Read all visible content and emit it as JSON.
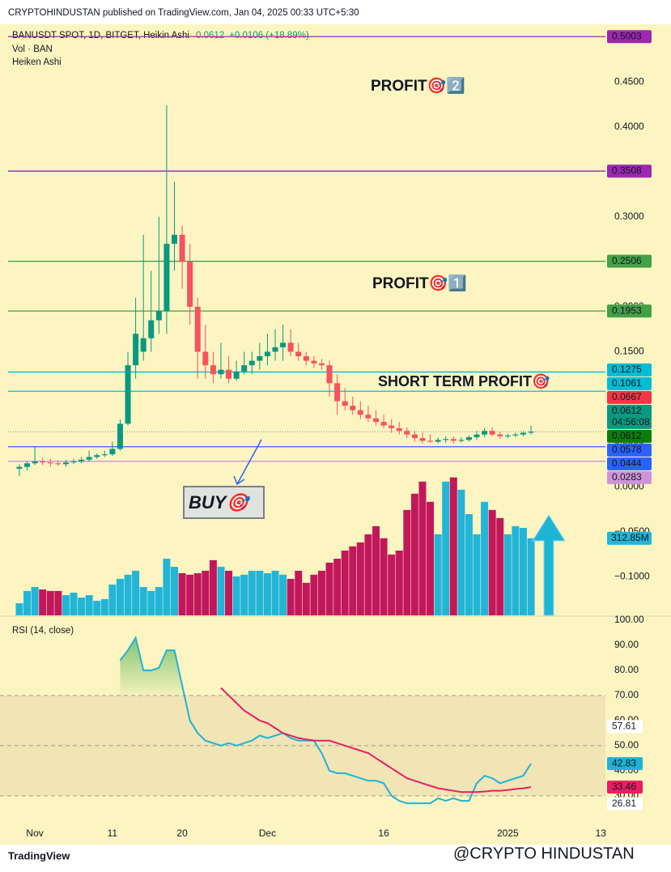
{
  "header": {
    "published": "CRYPTOHINDUSTAN published on TradingView.com, Jan 04, 2025 00:33 UTC+5:30",
    "symbol": "BANUSDT SPOT, 1D, BITGET, Heikin Ashi",
    "last": "0.0612",
    "change": "+0.0106 (+18.89%)",
    "volume_legend": "Vol · BAN",
    "indicator": "Heiken Ashi"
  },
  "annotations": {
    "profit2": "PROFIT🎯2️⃣",
    "profit1": "PROFIT🎯1️⃣",
    "short_term": "SHORT TERM PROFIT🎯",
    "buy": "BUY🎯"
  },
  "footer": {
    "brand": "TradingView",
    "watermark": "@CRYPTO HINDUSTAN"
  },
  "chart_data": [
    {
      "type": "candlestick",
      "up_color": "#089981",
      "down_color": "#f7525f",
      "categories": [
        null,
        null,
        null,
        null,
        null,
        null,
        null,
        null,
        null,
        null,
        null,
        null,
        null,
        null,
        null,
        null,
        null,
        null,
        null,
        null,
        null,
        null,
        null,
        null,
        null,
        null,
        null,
        null,
        null,
        null,
        null,
        null,
        null,
        null,
        null,
        null,
        null,
        null,
        null,
        null,
        null,
        null,
        null,
        null,
        null,
        null,
        null,
        null,
        null,
        null,
        null,
        null,
        null,
        null,
        null,
        null,
        null,
        null,
        null,
        null,
        null,
        null,
        null,
        null,
        null,
        null,
        null
      ],
      "open": [
        0.02,
        0.022,
        0.026,
        0.028,
        0.027,
        0.026,
        0.025,
        0.027,
        0.028,
        0.03,
        0.033,
        0.035,
        0.036,
        0.042,
        0.07,
        0.135,
        0.15,
        0.165,
        0.185,
        0.195,
        0.27,
        0.28,
        0.25,
        0.2,
        0.15,
        0.135,
        0.125,
        0.13,
        0.12,
        0.128,
        0.135,
        0.14,
        0.145,
        0.15,
        0.155,
        0.16,
        0.15,
        0.145,
        0.14,
        0.137,
        0.135,
        0.115,
        0.095,
        0.09,
        0.085,
        0.08,
        0.076,
        0.072,
        0.068,
        0.065,
        0.062,
        0.058,
        0.054,
        0.051,
        0.05,
        0.052,
        0.053,
        0.051,
        0.052,
        0.055,
        0.058,
        0.062,
        0.058,
        0.056,
        0.057,
        0.058,
        0.06
      ],
      "high": [
        0.025,
        0.028,
        0.045,
        0.032,
        0.031,
        0.029,
        0.03,
        0.031,
        0.033,
        0.04,
        0.037,
        0.04,
        0.05,
        0.075,
        0.15,
        0.21,
        0.28,
        0.24,
        0.3,
        0.424,
        0.339,
        0.29,
        0.27,
        0.21,
        0.18,
        0.15,
        0.16,
        0.145,
        0.14,
        0.15,
        0.15,
        0.16,
        0.17,
        0.175,
        0.18,
        0.175,
        0.16,
        0.15,
        0.145,
        0.142,
        0.14,
        0.125,
        0.11,
        0.1,
        0.095,
        0.09,
        0.085,
        0.08,
        0.075,
        0.072,
        0.066,
        0.062,
        0.06,
        0.058,
        0.055,
        0.056,
        0.056,
        0.055,
        0.057,
        0.062,
        0.065,
        0.066,
        0.061,
        0.059,
        0.06,
        0.062,
        0.068
      ],
      "low": [
        0.012,
        0.018,
        0.024,
        0.024,
        0.022,
        0.023,
        0.022,
        0.025,
        0.026,
        0.028,
        0.031,
        0.033,
        0.034,
        0.04,
        0.068,
        0.12,
        0.14,
        0.15,
        0.17,
        0.17,
        0.24,
        0.22,
        0.18,
        0.12,
        0.12,
        0.115,
        0.12,
        0.115,
        0.118,
        0.125,
        0.125,
        0.13,
        0.135,
        0.14,
        0.14,
        0.145,
        0.14,
        0.135,
        0.132,
        0.13,
        0.1,
        0.08,
        0.085,
        0.08,
        0.075,
        0.072,
        0.068,
        0.065,
        0.06,
        0.058,
        0.054,
        0.05,
        0.048,
        0.049,
        0.048,
        0.049,
        0.048,
        0.049,
        0.05,
        0.052,
        0.055,
        0.056,
        0.053,
        0.054,
        0.055,
        0.056,
        0.058
      ],
      "close": [
        0.022,
        0.026,
        0.028,
        0.027,
        0.026,
        0.025,
        0.027,
        0.028,
        0.03,
        0.033,
        0.035,
        0.036,
        0.042,
        0.07,
        0.135,
        0.17,
        0.165,
        0.185,
        0.195,
        0.27,
        0.28,
        0.25,
        0.2,
        0.15,
        0.135,
        0.125,
        0.13,
        0.12,
        0.128,
        0.135,
        0.14,
        0.145,
        0.15,
        0.155,
        0.16,
        0.15,
        0.145,
        0.14,
        0.137,
        0.135,
        0.115,
        0.095,
        0.09,
        0.085,
        0.08,
        0.076,
        0.072,
        0.068,
        0.065,
        0.062,
        0.058,
        0.054,
        0.051,
        0.05,
        0.052,
        0.053,
        0.051,
        0.052,
        0.055,
        0.058,
        0.062,
        0.058,
        0.056,
        0.057,
        0.058,
        0.06,
        0.0612
      ],
      "xlim": [
        -2.5,
        75.6
      ],
      "ylim": [
        -0.143,
        0.514
      ],
      "yticks": [
        {
          "value": 0.45,
          "label": "0.4500"
        },
        {
          "value": 0.4,
          "label": "0.4000"
        },
        {
          "value": 0.3,
          "label": "0.3000"
        },
        {
          "value": 0.2,
          "label": "0.2000"
        },
        {
          "value": 0.15,
          "label": "0.1500"
        },
        {
          "value": 0.1,
          "label": "0.1000"
        },
        {
          "value": 0.05,
          "label": "0.0500"
        },
        {
          "value": 0,
          "label": "0.0000"
        },
        {
          "value": -0.05,
          "label": "−0.0500"
        },
        {
          "value": -0.1,
          "label": "−0.1000"
        }
      ],
      "levels": [
        {
          "value": 0.5003,
          "color": "#9c27b0",
          "line": "solid"
        },
        {
          "value": 0.3508,
          "color": "#9c27b0",
          "line": "solid"
        },
        {
          "value": 0.2506,
          "color": "#43a047",
          "line": "solid"
        },
        {
          "value": 0.1953,
          "color": "#43a047",
          "line": "solid"
        },
        {
          "value": 0.1275,
          "color": "#00bcd4",
          "line": "solid"
        },
        {
          "value": 0.1061,
          "color": "#00bcd4",
          "line": "solid"
        },
        {
          "value": 0.0667,
          "color": "#f23645",
          "line": "none"
        },
        {
          "value": 0.0612,
          "color": "#089981",
          "line": "none",
          "countdown": "04:56:08"
        },
        {
          "value": 0.0612,
          "color": "#0a7d0a",
          "line": "dotted"
        },
        {
          "value": 0.0578,
          "color": "#2962ff",
          "line": "none"
        },
        {
          "value": 0.0444,
          "color": "#2962ff",
          "line": "solid"
        },
        {
          "value": 0.0283,
          "color": "#ce93d8",
          "line": "solid"
        }
      ]
    },
    {
      "type": "bar",
      "up_color": "#22b5d8",
      "down_color": "#c2185b",
      "ylim": [
        0,
        2400
      ],
      "values": [
        49,
        99,
        115,
        105,
        99,
        99,
        82,
        92,
        72,
        82,
        59,
        66,
        125,
        148,
        165,
        181,
        115,
        99,
        115,
        230,
        197,
        171,
        165,
        171,
        181,
        224,
        197,
        181,
        158,
        165,
        181,
        181,
        171,
        181,
        165,
        148,
        181,
        132,
        165,
        181,
        214,
        230,
        263,
        280,
        296,
        329,
        362,
        313,
        247,
        263,
        428,
        494,
        543,
        461,
        329,
        543,
        560,
        510,
        411,
        329,
        461,
        428,
        395,
        329,
        362,
        355,
        312.85
      ],
      "last_value_label": "312.85M"
    },
    {
      "type": "line",
      "title": "RSI (14, close)",
      "xlim": [
        -2.5,
        75.6
      ],
      "ylim": [
        20.6,
        101.3
      ],
      "band": [
        30,
        70
      ],
      "levels": [
        70,
        50,
        30
      ],
      "yticks": [
        {
          "value": 100,
          "label": "100.00"
        },
        {
          "value": 90,
          "label": "90.00"
        },
        {
          "value": 80,
          "label": "80.00"
        },
        {
          "value": 70,
          "label": "70.00"
        },
        {
          "value": 60,
          "label": "60.00"
        },
        {
          "value": 50,
          "label": "50.00"
        },
        {
          "value": 40,
          "label": "40.00"
        },
        {
          "value": 30,
          "label": "30.00"
        }
      ],
      "xticks": [
        {
          "value": 2,
          "label": "Nov"
        },
        {
          "value": 12,
          "label": "11"
        },
        {
          "value": 21,
          "label": "20"
        },
        {
          "value": 32,
          "label": "Dec"
        },
        {
          "value": 47,
          "label": "16"
        },
        {
          "value": 63,
          "label": "2025"
        },
        {
          "value": 75,
          "label": "13"
        }
      ],
      "series": [
        {
          "name": "RSI",
          "color": "#1eb4d6",
          "values": [
            null,
            null,
            null,
            null,
            null,
            null,
            null,
            null,
            null,
            null,
            null,
            null,
            null,
            84,
            88,
            93,
            80,
            80,
            81,
            88,
            88,
            74,
            60,
            55,
            52,
            51,
            50,
            51,
            50,
            51,
            52,
            54,
            53,
            54,
            55,
            53,
            52,
            52,
            52,
            47,
            40,
            39,
            39,
            38,
            37,
            36,
            36,
            35,
            30,
            28,
            27,
            27,
            27,
            27,
            29,
            28,
            29,
            28,
            28,
            35,
            38,
            37,
            35,
            36,
            37,
            38,
            42.83
          ]
        },
        {
          "name": "RSI-based MA",
          "color": "#e91e63",
          "values": [
            null,
            null,
            null,
            null,
            null,
            null,
            null,
            null,
            null,
            null,
            null,
            null,
            null,
            null,
            null,
            null,
            null,
            null,
            null,
            null,
            null,
            null,
            null,
            null,
            null,
            null,
            73,
            70,
            67,
            64,
            62,
            60,
            59,
            57,
            55,
            54,
            53,
            52.5,
            52,
            52,
            52,
            51,
            50,
            49,
            48,
            47,
            45,
            43,
            41,
            39,
            37,
            36,
            35,
            34,
            33,
            32.5,
            32,
            31.5,
            31.5,
            31.5,
            31.7,
            32,
            32,
            32.3,
            32.7,
            33,
            33.46
          ]
        }
      ],
      "extra_labels": [
        57.61,
        26.81
      ]
    }
  ]
}
